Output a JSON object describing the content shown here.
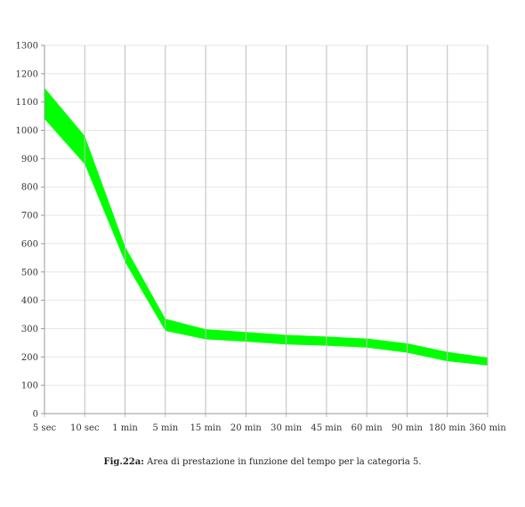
{
  "chart_data": {
    "type": "area",
    "title": "",
    "xlabel": "",
    "ylabel": "",
    "categories": [
      "5 sec",
      "10 sec",
      "1 min",
      "5 min",
      "15 min",
      "20 min",
      "30 min",
      "45 min",
      "60 min",
      "90 min",
      "180 min",
      "360 min"
    ],
    "series": [
      {
        "upper": [
          1150,
          980,
          590,
          335,
          298,
          288,
          278,
          272,
          265,
          248,
          218,
          198
        ],
        "lower": [
          1040,
          880,
          535,
          292,
          262,
          254,
          244,
          240,
          233,
          215,
          185,
          170
        ]
      }
    ],
    "ylim": [
      0,
      1300
    ],
    "yticks": [
      0,
      100,
      200,
      300,
      400,
      500,
      600,
      700,
      800,
      900,
      1000,
      1100,
      1200,
      1300
    ],
    "grid": true,
    "colors": {
      "band": "#00ff00",
      "grid": "#e6e6e6",
      "vline": "#bdbdbd",
      "axis": "#999999"
    }
  },
  "caption": {
    "label": "Fig.22a:",
    "text": " Area di prestazione in funzione del tempo per la categoria 5."
  }
}
